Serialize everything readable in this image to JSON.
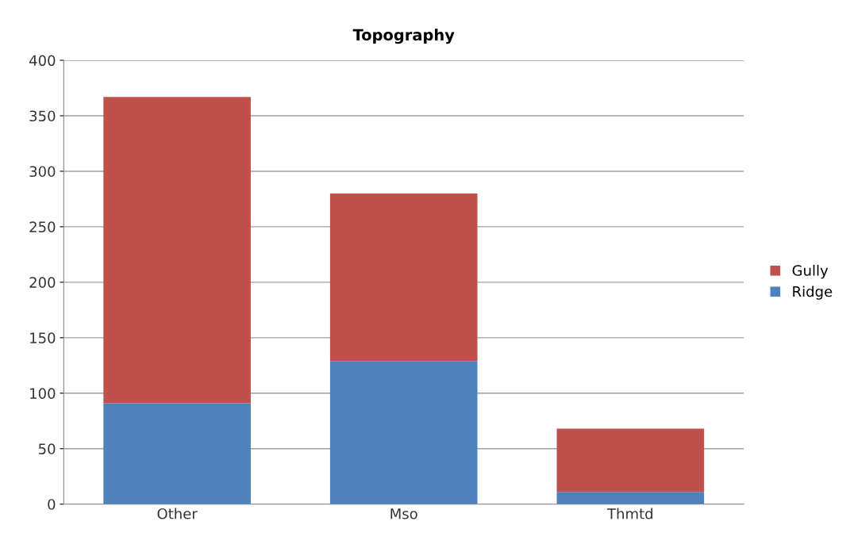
{
  "chart_data": {
    "type": "bar",
    "title": "Topography",
    "categories": [
      "Other",
      "Mso",
      "Thmtd"
    ],
    "stacked": true,
    "series": [
      {
        "name": "Ridge",
        "color": "#4f81bd",
        "values": [
          91,
          129,
          11
        ]
      },
      {
        "name": "Gully",
        "color": "#c0504d",
        "values": [
          276,
          151,
          57
        ]
      }
    ],
    "ylim": [
      0,
      400
    ],
    "yticks": [
      0,
      50,
      100,
      150,
      200,
      250,
      300,
      350,
      400
    ],
    "grid": "y",
    "legend": "right"
  }
}
